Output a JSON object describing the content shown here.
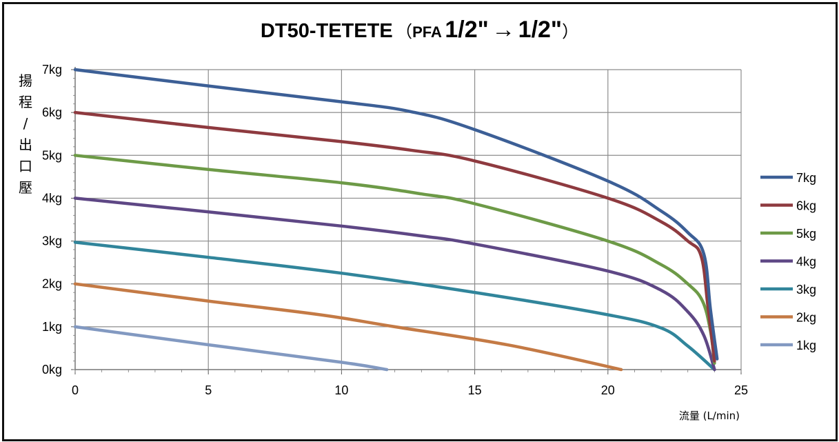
{
  "title": {
    "main": "DT50-TETETE",
    "open_paren": "（",
    "material": "PFA",
    "inlet": "1/2\"",
    "arrow": "→",
    "outlet": "1/2\"",
    "close_paren": "）"
  },
  "y_axis_label_chars": [
    "揚",
    "程",
    "/",
    "出",
    "口",
    "壓"
  ],
  "x_axis_label": "流量 (L/min)",
  "chart_data": {
    "type": "line",
    "title": "DT50-TETETE （PFA 1/2\"→1/2\"）",
    "xlabel": "流量 (L/min)",
    "ylabel": "揚程/出口壓",
    "xlim": [
      0,
      25
    ],
    "ylim": [
      0,
      7
    ],
    "x_ticks": [
      "0",
      "5",
      "10",
      "15",
      "20",
      "25"
    ],
    "y_ticks": [
      "0kg",
      "1kg",
      "2kg",
      "3kg",
      "4kg",
      "5kg",
      "6kg",
      "7kg"
    ],
    "grid": true,
    "legend_position": "right",
    "series": [
      {
        "name": "7kg",
        "color": "#3c5f96",
        "points": [
          [
            0,
            7
          ],
          [
            5,
            6.62
          ],
          [
            10,
            6.25
          ],
          [
            12.6,
            6.02
          ],
          [
            15,
            5.6
          ],
          [
            20,
            4.4
          ],
          [
            22,
            3.7
          ],
          [
            23,
            3.2
          ],
          [
            23.6,
            2.7
          ],
          [
            23.85,
            1.4
          ],
          [
            24.1,
            0.25
          ]
        ]
      },
      {
        "name": "6kg",
        "color": "#8e3a3f",
        "points": [
          [
            0,
            6
          ],
          [
            5,
            5.65
          ],
          [
            10,
            5.32
          ],
          [
            12.6,
            5.12
          ],
          [
            15,
            4.87
          ],
          [
            20,
            4.0
          ],
          [
            22,
            3.45
          ],
          [
            23,
            3.0
          ],
          [
            23.5,
            2.65
          ],
          [
            23.75,
            1.5
          ],
          [
            24.0,
            0.2
          ]
        ]
      },
      {
        "name": "5kg",
        "color": "#6d9a47",
        "points": [
          [
            0,
            5
          ],
          [
            5,
            4.67
          ],
          [
            10,
            4.36
          ],
          [
            13,
            4.1
          ],
          [
            15,
            3.87
          ],
          [
            20,
            3.0
          ],
          [
            22,
            2.45
          ],
          [
            23,
            2.0
          ],
          [
            23.55,
            1.6
          ],
          [
            23.85,
            0.9
          ],
          [
            24.0,
            0.15
          ]
        ]
      },
      {
        "name": "4kg",
        "color": "#5e4785",
        "points": [
          [
            0,
            4
          ],
          [
            5,
            3.68
          ],
          [
            10,
            3.35
          ],
          [
            13,
            3.12
          ],
          [
            15,
            2.93
          ],
          [
            20,
            2.3
          ],
          [
            22,
            1.85
          ],
          [
            23,
            1.35
          ],
          [
            23.6,
            0.8
          ],
          [
            24.0,
            0
          ]
        ]
      },
      {
        "name": "3kg",
        "color": "#31859b",
        "points": [
          [
            0,
            2.97
          ],
          [
            5,
            2.62
          ],
          [
            10,
            2.25
          ],
          [
            15,
            1.8
          ],
          [
            20,
            1.28
          ],
          [
            22,
            0.97
          ],
          [
            23,
            0.55
          ],
          [
            24.0,
            0
          ]
        ]
      },
      {
        "name": "2kg",
        "color": "#c47a45",
        "points": [
          [
            0,
            2
          ],
          [
            5,
            1.6
          ],
          [
            9.2,
            1.28
          ],
          [
            12,
            1.0
          ],
          [
            16.3,
            0.57
          ],
          [
            20.5,
            0
          ]
        ]
      },
      {
        "name": "1kg",
        "color": "#8299c1",
        "points": [
          [
            0,
            1
          ],
          [
            5,
            0.58
          ],
          [
            10,
            0.17
          ],
          [
            11.7,
            0
          ]
        ]
      }
    ]
  }
}
